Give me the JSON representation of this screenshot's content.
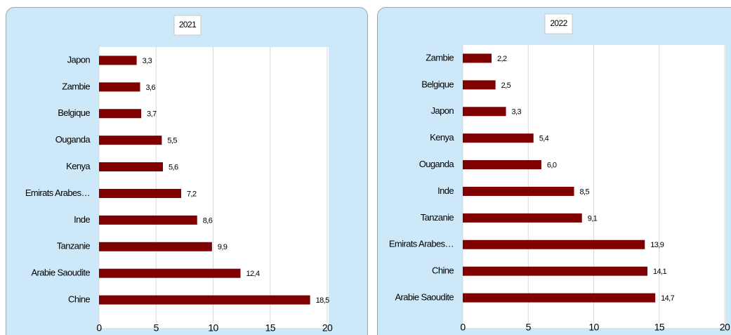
{
  "chart_data": [
    {
      "type": "bar",
      "orientation": "horizontal",
      "title": "2021",
      "categories": [
        "Japon",
        "Zambie",
        "Belgique",
        "Ouganda",
        "Kenya",
        "Emirats Arabes…",
        "Inde",
        "Tanzanie",
        "Arabie Saoudite",
        "Chine"
      ],
      "values": [
        3.3,
        3.6,
        3.7,
        5.5,
        5.6,
        7.2,
        8.6,
        9.9,
        12.4,
        18.5
      ],
      "value_labels": [
        "3,3",
        "3,6",
        "3,7",
        "5,5",
        "5,6",
        "7,2",
        "8,6",
        "9,9",
        "12,4",
        "18,5"
      ],
      "color": "#7f0000",
      "xlim": [
        0,
        20
      ],
      "xticks": [
        0,
        5,
        10,
        15,
        20
      ],
      "grid": true
    },
    {
      "type": "bar",
      "orientation": "horizontal",
      "title": "2022",
      "categories": [
        "Zambie",
        "Belgique",
        "Japon",
        "Kenya",
        "Ouganda",
        "Inde",
        "Tanzanie",
        "Emirats Arabes…",
        "Chine",
        "Arabie Saoudite"
      ],
      "values": [
        2.2,
        2.5,
        3.3,
        5.4,
        6.0,
        8.5,
        9.1,
        13.9,
        14.1,
        14.7
      ],
      "value_labels": [
        "2,2",
        "2,5",
        "3,3",
        "5,4",
        "6,0",
        "8,5",
        "9,1",
        "13,9",
        "14,1",
        "14,7"
      ],
      "color": "#7f0000",
      "xlim": [
        0,
        20
      ],
      "xticks": [
        0,
        5,
        10,
        15,
        20
      ],
      "grid": true
    }
  ]
}
